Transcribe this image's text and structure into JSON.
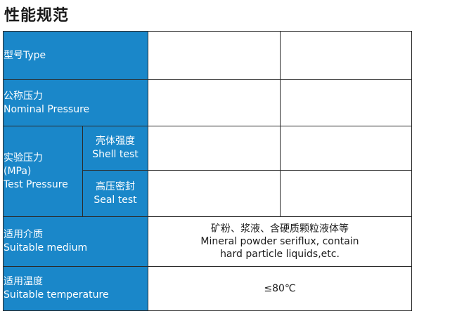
{
  "heading": "性能规范",
  "rows": {
    "type": {
      "zh": "型号",
      "en": "Type"
    },
    "nominal_pressure": {
      "zh": "公称压力",
      "en": "Nominal Pressure"
    },
    "test_pressure": {
      "zh": "实验压力",
      "unit": "(MPa)",
      "en": "Test Pressure",
      "shell": {
        "zh": "壳体强度",
        "en": "Shell test"
      },
      "seal": {
        "zh": "高压密封",
        "en": "Seal test"
      }
    },
    "suitable_medium": {
      "zh": "适用介质",
      "en": "Suitable medium",
      "value_zh": "矿粉、浆液、含硬质颗粒液体等",
      "value_en_1": "Mineral powder seriflux, contain",
      "value_en_2": "hard particle liquids,etc."
    },
    "suitable_temperature": {
      "zh": "适用温度",
      "en": "Suitable temperature",
      "value": "≤80℃"
    }
  },
  "colors": {
    "header_fill": "#1a87c9",
    "header_text": "#ffffff",
    "border": "#2b2b2b"
  }
}
